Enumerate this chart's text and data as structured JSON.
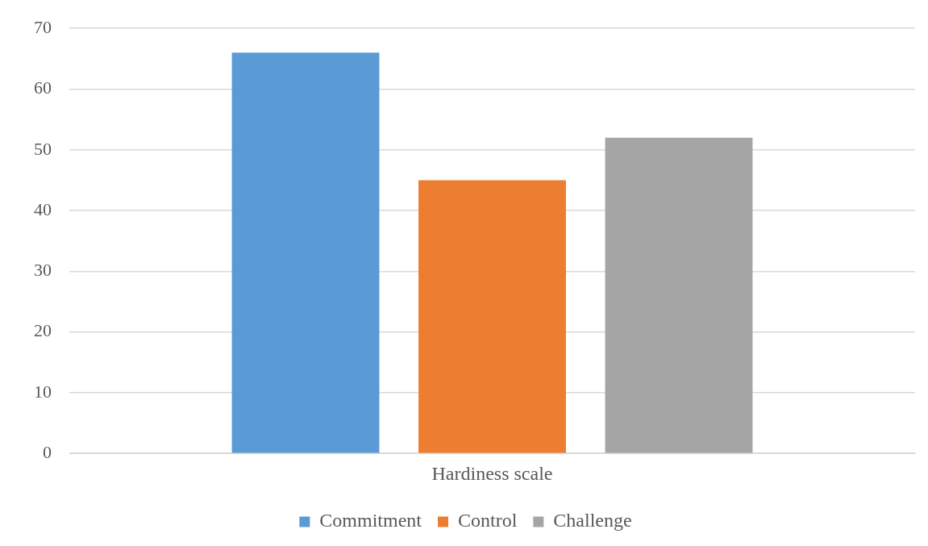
{
  "chart_data": {
    "type": "bar",
    "categories": [
      "Hardiness scale"
    ],
    "series": [
      {
        "name": "Commitment",
        "color": "#5b9bd5",
        "values": [
          66
        ]
      },
      {
        "name": "Control",
        "color": "#ed7d31",
        "values": [
          45
        ]
      },
      {
        "name": "Challenge",
        "color": "#a5a5a5",
        "values": [
          52
        ]
      }
    ],
    "ylim": [
      0,
      70
    ],
    "yticks": [
      0,
      10,
      20,
      30,
      40,
      50,
      60,
      70
    ],
    "grid": "y",
    "legend": "bottom"
  }
}
